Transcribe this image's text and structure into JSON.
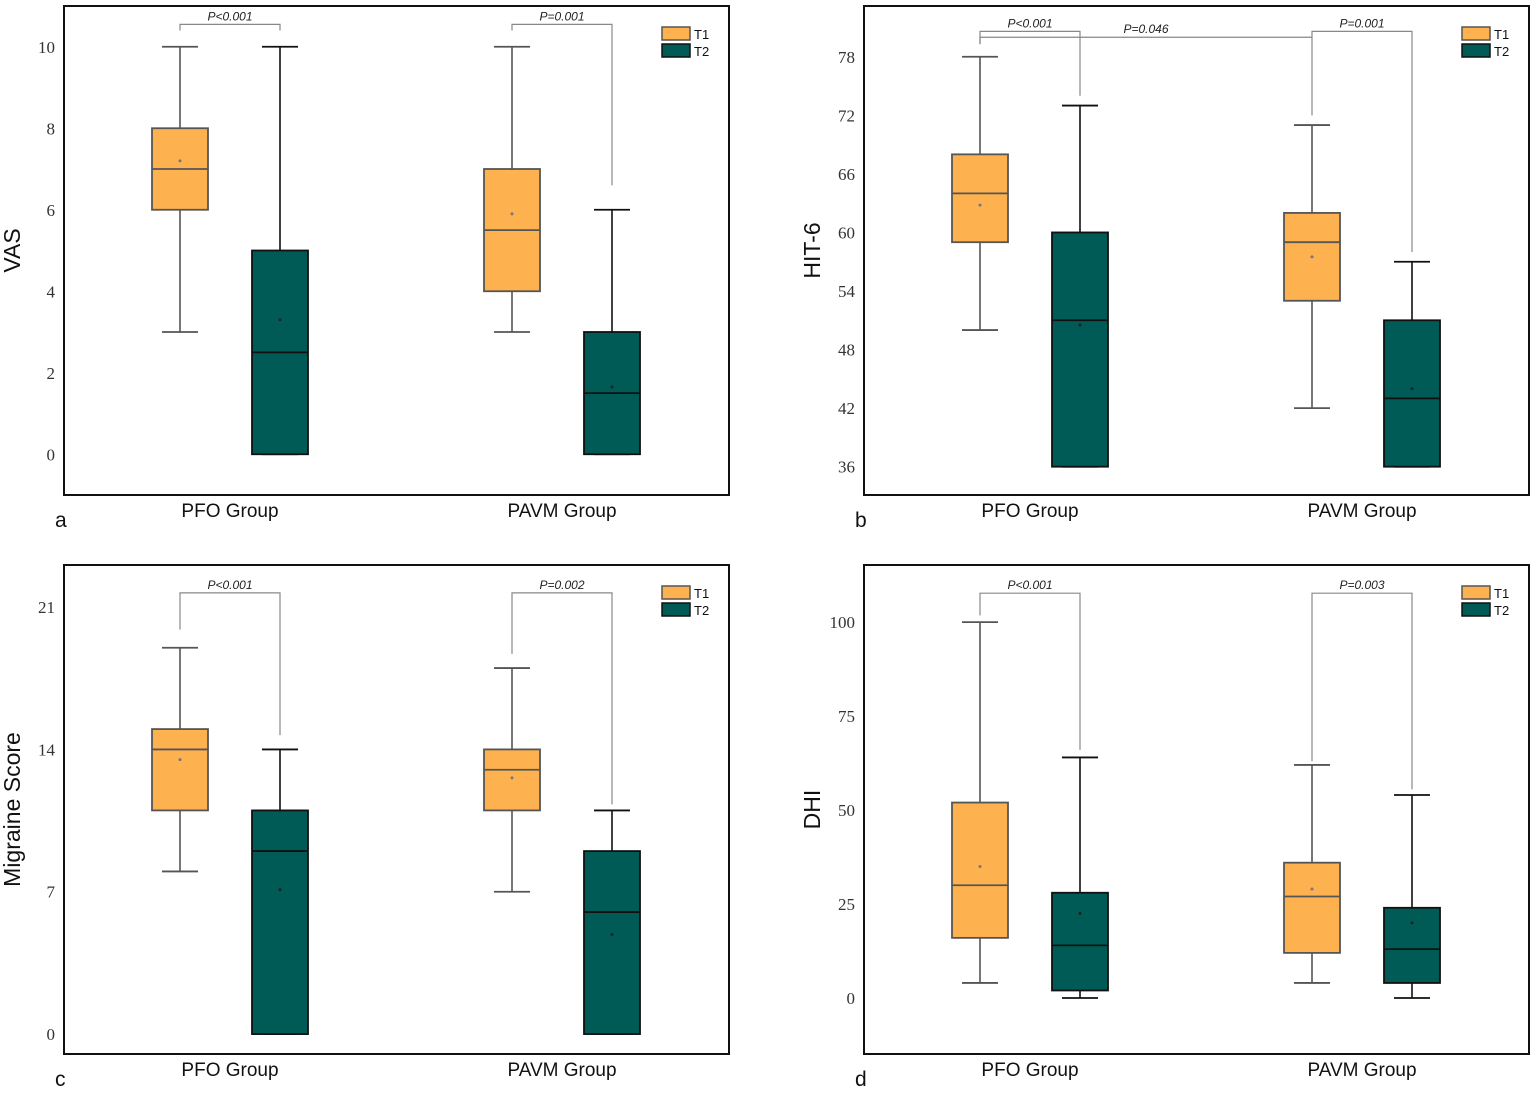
{
  "colors": {
    "T1": "#FDB24F",
    "T2": "#005A56",
    "frame": "#111111",
    "whisker": "#444444",
    "bracket": "#888888"
  },
  "chart_data": [
    {
      "type": "box",
      "panel_label": "a",
      "ylabel": "VAS",
      "ylim": [
        -1,
        11
      ],
      "yticks": [
        0,
        2,
        4,
        6,
        8,
        10
      ],
      "categories": [
        "PFO Group",
        "PAVM Group"
      ],
      "legend": [
        "T1",
        "T2"
      ],
      "legend_position": "top-right",
      "groups": [
        {
          "name": "PFO Group",
          "series": [
            {
              "name": "T1",
              "min": 3,
              "q1": 6,
              "median": 7,
              "q3": 8,
              "max": 10,
              "mean": 7.2
            },
            {
              "name": "T2",
              "min": 0,
              "q1": 0,
              "median": 2.5,
              "q3": 5,
              "max": 10,
              "mean": 3.3
            }
          ]
        },
        {
          "name": "PAVM Group",
          "series": [
            {
              "name": "T1",
              "min": 3,
              "q1": 4,
              "median": 5.5,
              "q3": 7,
              "max": 10,
              "mean": 5.9
            },
            {
              "name": "T2",
              "min": 0,
              "q1": 0,
              "median": 1.5,
              "q3": 3,
              "max": 6,
              "mean": 1.65
            }
          ]
        }
      ],
      "brackets": [
        {
          "label": "P<0.001",
          "from": [
            0,
            0
          ],
          "to": [
            0,
            1
          ],
          "y": 10.55,
          "left_end": 10.4,
          "right_end": 10.4
        },
        {
          "label": "P=0.001",
          "from": [
            1,
            0
          ],
          "to": [
            1,
            1
          ],
          "y": 10.55,
          "left_end": 10.4,
          "right_end": 6.6
        }
      ]
    },
    {
      "type": "box",
      "panel_label": "b",
      "ylabel": "HIT-6",
      "ylim": [
        33.1,
        83.2
      ],
      "yticks": [
        36,
        42,
        48,
        54,
        60,
        66,
        72,
        78
      ],
      "categories": [
        "PFO Group",
        "PAVM Group"
      ],
      "legend": [
        "T1",
        "T2"
      ],
      "legend_position": "top-right",
      "groups": [
        {
          "name": "PFO Group",
          "series": [
            {
              "name": "T1",
              "min": 50,
              "q1": 59,
              "median": 64,
              "q3": 68,
              "max": 78,
              "mean": 62.8
            },
            {
              "name": "T2",
              "min": 36,
              "q1": 36,
              "median": 51,
              "q3": 60,
              "max": 73,
              "mean": 50.5
            }
          ]
        },
        {
          "name": "PAVM Group",
          "series": [
            {
              "name": "T1",
              "min": 42,
              "q1": 53,
              "median": 59,
              "q3": 62,
              "max": 71,
              "mean": 57.5
            },
            {
              "name": "T2",
              "min": 36,
              "q1": 36,
              "median": 43,
              "q3": 51,
              "max": 57,
              "mean": 44
            }
          ]
        }
      ],
      "brackets": [
        {
          "label": "P<0.001",
          "from": [
            0,
            0
          ],
          "to": [
            0,
            1
          ],
          "y": 80.6,
          "left_end": 79.3,
          "right_end": 74
        },
        {
          "label": "P=0.046",
          "from": [
            0,
            0
          ],
          "to": [
            1,
            0
          ],
          "y": 80.0,
          "left_end": 79.3,
          "right_end": 72
        },
        {
          "label": "P=0.001",
          "from": [
            1,
            0
          ],
          "to": [
            1,
            1
          ],
          "y": 80.6,
          "left_end": 80.0,
          "right_end": 58
        }
      ]
    },
    {
      "type": "box",
      "panel_label": "c",
      "ylabel": "Migraine Score",
      "ylim": [
        -0.98,
        23.07
      ],
      "yticks": [
        0,
        7,
        14,
        21
      ],
      "categories": [
        "PFO Group",
        "PAVM Group"
      ],
      "legend": [
        "T1",
        "T2"
      ],
      "legend_position": "top-right",
      "groups": [
        {
          "name": "PFO Group",
          "series": [
            {
              "name": "T1",
              "min": 8,
              "q1": 11,
              "median": 14,
              "q3": 15,
              "max": 19,
              "mean": 13.5
            },
            {
              "name": "T2",
              "min": 0,
              "q1": 0,
              "median": 9,
              "q3": 11,
              "max": 14,
              "mean": 7.1
            }
          ]
        },
        {
          "name": "PAVM Group",
          "series": [
            {
              "name": "T1",
              "min": 7,
              "q1": 11,
              "median": 13,
              "q3": 14,
              "max": 18,
              "mean": 12.6
            },
            {
              "name": "T2",
              "min": 0,
              "q1": 0,
              "median": 6,
              "q3": 9,
              "max": 11,
              "mean": 4.9
            }
          ]
        }
      ],
      "brackets": [
        {
          "label": "P<0.001",
          "from": [
            0,
            0
          ],
          "to": [
            0,
            1
          ],
          "y": 21.7,
          "left_end": 19.9,
          "right_end": 14.7
        },
        {
          "label": "P=0.002",
          "from": [
            1,
            0
          ],
          "to": [
            1,
            1
          ],
          "y": 21.7,
          "left_end": 18.7,
          "right_end": 11.3
        }
      ]
    },
    {
      "type": "box",
      "panel_label": "d",
      "ylabel": "DHI",
      "ylim": [
        -14.9,
        115.2
      ],
      "yticks": [
        0,
        25,
        50,
        75,
        100
      ],
      "categories": [
        "PFO Group",
        "PAVM Group"
      ],
      "legend": [
        "T1",
        "T2"
      ],
      "legend_position": "top-right",
      "groups": [
        {
          "name": "PFO Group",
          "series": [
            {
              "name": "T1",
              "min": 4,
              "q1": 16,
              "median": 30,
              "q3": 52,
              "max": 100,
              "mean": 35
            },
            {
              "name": "T2",
              "min": 0,
              "q1": 2,
              "median": 14,
              "q3": 28,
              "max": 64,
              "mean": 22.5
            }
          ]
        },
        {
          "name": "PAVM Group",
          "series": [
            {
              "name": "T1",
              "min": 4,
              "q1": 12,
              "median": 27,
              "q3": 36,
              "max": 62,
              "mean": 29
            },
            {
              "name": "T2",
              "min": 0,
              "q1": 4,
              "median": 13,
              "q3": 24,
              "max": 54,
              "mean": 20
            }
          ]
        }
      ],
      "brackets": [
        {
          "label": "P<0.001",
          "from": [
            0,
            0
          ],
          "to": [
            0,
            1
          ],
          "y": 107.7,
          "left_end": 101.8,
          "right_end": 66
        },
        {
          "label": "P=0.003",
          "from": [
            1,
            0
          ],
          "to": [
            1,
            1
          ],
          "y": 107.7,
          "left_end": 63,
          "right_end": 55.5
        }
      ]
    }
  ]
}
